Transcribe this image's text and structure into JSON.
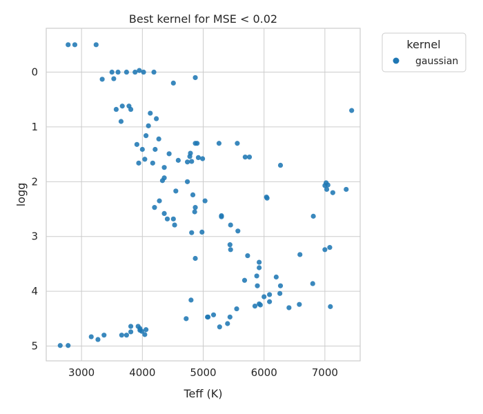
{
  "chart_data": {
    "type": "scatter",
    "title": "Best kernel for MSE < 0.02",
    "xlabel": "Teff (K)",
    "ylabel": "logg",
    "xlim": [
      2420,
      7580
    ],
    "ylim": [
      -0.8,
      5.27
    ],
    "y_inverted": true,
    "xticks": [
      3000,
      4000,
      5000,
      6000,
      7000
    ],
    "yticks": [
      0,
      1,
      2,
      3,
      4,
      5
    ],
    "grid": true,
    "legend": {
      "title": "kernel",
      "placement": "outside-top-right"
    },
    "series": [
      {
        "name": "gaussian",
        "color": "#1f77b4",
        "points": [
          [
            2780,
            -0.5
          ],
          [
            2890,
            -0.5
          ],
          [
            3240,
            -0.5
          ],
          [
            3340,
            0.13
          ],
          [
            3500,
            0.0
          ],
          [
            3530,
            0.12
          ],
          [
            3600,
            0.0
          ],
          [
            3740,
            0.0
          ],
          [
            3880,
            0.0
          ],
          [
            3950,
            -0.03
          ],
          [
            4020,
            0.0
          ],
          [
            4190,
            0.0
          ],
          [
            4510,
            0.2
          ],
          [
            4870,
            0.1
          ],
          [
            3570,
            0.68
          ],
          [
            3670,
            0.62
          ],
          [
            3650,
            0.9
          ],
          [
            3780,
            0.62
          ],
          [
            3810,
            0.68
          ],
          [
            4130,
            0.75
          ],
          [
            4100,
            0.98
          ],
          [
            4230,
            0.85
          ],
          [
            7440,
            0.7
          ],
          [
            4060,
            1.16
          ],
          [
            3910,
            1.32
          ],
          [
            4000,
            1.41
          ],
          [
            4040,
            1.59
          ],
          [
            3940,
            1.66
          ],
          [
            4170,
            1.66
          ],
          [
            4210,
            1.41
          ],
          [
            4270,
            1.22
          ],
          [
            4440,
            1.49
          ],
          [
            4360,
            1.74
          ],
          [
            4360,
            1.93
          ],
          [
            4330,
            1.98
          ],
          [
            4590,
            1.61
          ],
          [
            4740,
            1.64
          ],
          [
            4780,
            1.54
          ],
          [
            4790,
            1.48
          ],
          [
            4810,
            1.63
          ],
          [
            4870,
            1.3
          ],
          [
            4900,
            1.3
          ],
          [
            4920,
            1.56
          ],
          [
            4990,
            1.58
          ],
          [
            5260,
            1.3
          ],
          [
            5560,
            1.3
          ],
          [
            5690,
            1.55
          ],
          [
            5760,
            1.55
          ],
          [
            6270,
            1.7
          ],
          [
            4550,
            2.17
          ],
          [
            4740,
            2.0
          ],
          [
            4830,
            2.24
          ],
          [
            4870,
            2.47
          ],
          [
            4860,
            2.55
          ],
          [
            5030,
            2.35
          ],
          [
            4280,
            2.35
          ],
          [
            4200,
            2.47
          ],
          [
            4360,
            2.58
          ],
          [
            4410,
            2.68
          ],
          [
            4510,
            2.68
          ],
          [
            4530,
            2.79
          ],
          [
            5300,
            2.62
          ],
          [
            5300,
            2.64
          ],
          [
            5450,
            2.79
          ],
          [
            5570,
            2.9
          ],
          [
            6040,
            2.28
          ],
          [
            6050,
            2.3
          ],
          [
            6810,
            2.63
          ],
          [
            7000,
            2.07
          ],
          [
            7020,
            2.02
          ],
          [
            7050,
            2.06
          ],
          [
            7030,
            2.14
          ],
          [
            7130,
            2.2
          ],
          [
            7350,
            2.14
          ],
          [
            4810,
            2.93
          ],
          [
            4980,
            2.92
          ],
          [
            4870,
            3.4
          ],
          [
            5440,
            3.15
          ],
          [
            5450,
            3.24
          ],
          [
            5730,
            3.35
          ],
          [
            5920,
            3.47
          ],
          [
            5920,
            3.57
          ],
          [
            6590,
            3.33
          ],
          [
            7000,
            3.24
          ],
          [
            7080,
            3.2
          ],
          [
            5680,
            3.8
          ],
          [
            5880,
            3.72
          ],
          [
            5890,
            3.9
          ],
          [
            6200,
            3.74
          ],
          [
            6270,
            3.9
          ],
          [
            6260,
            4.04
          ],
          [
            6800,
            3.86
          ],
          [
            6000,
            4.1
          ],
          [
            6090,
            4.06
          ],
          [
            6090,
            4.19
          ],
          [
            5850,
            4.27
          ],
          [
            5940,
            4.25
          ],
          [
            5920,
            4.23
          ],
          [
            6410,
            4.3
          ],
          [
            6580,
            4.24
          ],
          [
            7090,
            4.28
          ],
          [
            4800,
            4.16
          ],
          [
            5550,
            4.32
          ],
          [
            5170,
            4.43
          ],
          [
            5070,
            4.47
          ],
          [
            5080,
            4.47
          ],
          [
            4720,
            4.5
          ],
          [
            5440,
            4.47
          ],
          [
            5400,
            4.59
          ],
          [
            5270,
            4.65
          ],
          [
            3810,
            4.64
          ],
          [
            3930,
            4.64
          ],
          [
            3960,
            4.68
          ],
          [
            4060,
            4.7
          ],
          [
            3960,
            4.71
          ],
          [
            3990,
            4.73
          ],
          [
            3810,
            4.74
          ],
          [
            3660,
            4.8
          ],
          [
            3740,
            4.8
          ],
          [
            4040,
            4.79
          ],
          [
            3370,
            4.8
          ],
          [
            3160,
            4.83
          ],
          [
            3270,
            4.88
          ],
          [
            2650,
            4.99
          ],
          [
            2780,
            4.99
          ]
        ]
      }
    ]
  }
}
